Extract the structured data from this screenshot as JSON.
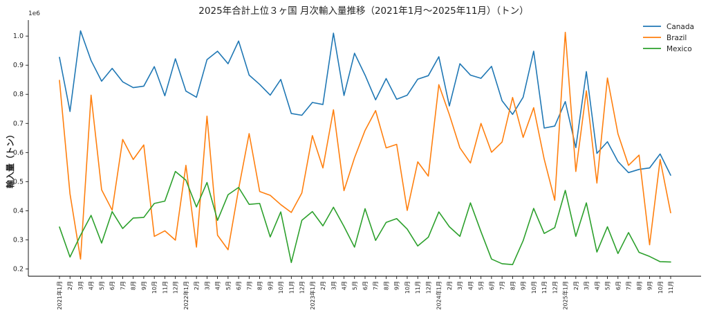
{
  "chart_data": {
    "type": "line",
    "title": "2025年合計上位３ヶ国 月次輸入量推移（2021年1月〜2025年11月）（トン）",
    "ylabel": "輸入量（トン）",
    "xlabel": "",
    "y_scale_label": "1e6",
    "y_scale": 1000000,
    "ylim": [
      0.175,
      1.055
    ],
    "yticks": [
      "0.2",
      "0.3",
      "0.4",
      "0.5",
      "0.6",
      "0.7",
      "0.8",
      "0.9",
      "1.0"
    ],
    "grid": false,
    "legend_position": "top-right",
    "categories": [
      "2021年1月",
      "2月",
      "3月",
      "4月",
      "5月",
      "6月",
      "7月",
      "8月",
      "9月",
      "10月",
      "11月",
      "12月",
      "2022年1月",
      "2月",
      "3月",
      "4月",
      "5月",
      "6月",
      "7月",
      "8月",
      "9月",
      "10月",
      "11月",
      "12月",
      "2023年1月",
      "2月",
      "3月",
      "4月",
      "5月",
      "6月",
      "7月",
      "8月",
      "9月",
      "10月",
      "11月",
      "12月",
      "2024年1月",
      "2月",
      "3月",
      "4月",
      "5月",
      "6月",
      "7月",
      "8月",
      "9月",
      "10月",
      "11月",
      "12月",
      "2025年1月",
      "2月",
      "3月",
      "4月",
      "5月",
      "6月",
      "7月",
      "8月",
      "9月",
      "10月",
      "11月"
    ],
    "series": [
      {
        "name": "Canada",
        "color": "#1f77b4",
        "values": [
          0.927,
          0.741,
          1.018,
          0.916,
          0.845,
          0.889,
          0.843,
          0.823,
          0.828,
          0.895,
          0.795,
          0.922,
          0.811,
          0.79,
          0.919,
          0.948,
          0.905,
          0.983,
          0.866,
          0.834,
          0.797,
          0.851,
          0.734,
          0.728,
          0.772,
          0.765,
          1.01,
          0.796,
          0.941,
          0.866,
          0.781,
          0.854,
          0.783,
          0.797,
          0.852,
          0.864,
          0.929,
          0.76,
          0.905,
          0.866,
          0.855,
          0.896,
          0.778,
          0.731,
          0.79,
          0.948,
          0.684,
          0.691,
          0.775,
          0.617,
          0.878,
          0.597,
          0.637,
          0.569,
          0.531,
          0.542,
          0.547,
          0.595,
          0.522
        ]
      },
      {
        "name": "Brazil",
        "color": "#ff7f0e",
        "values": [
          0.848,
          0.458,
          0.234,
          0.797,
          0.472,
          0.402,
          0.645,
          0.576,
          0.626,
          0.312,
          0.331,
          0.299,
          0.556,
          0.275,
          0.725,
          0.316,
          0.266,
          0.475,
          0.665,
          0.466,
          0.453,
          0.421,
          0.394,
          0.461,
          0.658,
          0.547,
          0.747,
          0.469,
          0.582,
          0.676,
          0.744,
          0.616,
          0.628,
          0.401,
          0.568,
          0.519,
          0.833,
          0.73,
          0.616,
          0.564,
          0.7,
          0.601,
          0.636,
          0.789,
          0.652,
          0.754,
          0.577,
          0.436,
          1.013,
          0.535,
          0.812,
          0.495,
          0.856,
          0.664,
          0.556,
          0.591,
          0.283,
          0.576,
          0.393
        ]
      },
      {
        "name": "Mexico",
        "color": "#2ca02c",
        "values": [
          0.344,
          0.241,
          0.316,
          0.384,
          0.289,
          0.397,
          0.339,
          0.375,
          0.377,
          0.425,
          0.433,
          0.535,
          0.505,
          0.413,
          0.497,
          0.367,
          0.455,
          0.48,
          0.422,
          0.425,
          0.31,
          0.396,
          0.222,
          0.367,
          0.397,
          0.348,
          0.412,
          0.346,
          0.275,
          0.407,
          0.298,
          0.36,
          0.373,
          0.337,
          0.279,
          0.309,
          0.396,
          0.345,
          0.312,
          0.427,
          0.328,
          0.234,
          0.218,
          0.215,
          0.297,
          0.408,
          0.322,
          0.342,
          0.47,
          0.312,
          0.427,
          0.258,
          0.345,
          0.253,
          0.325,
          0.257,
          0.243,
          0.225,
          0.224
        ]
      }
    ]
  }
}
